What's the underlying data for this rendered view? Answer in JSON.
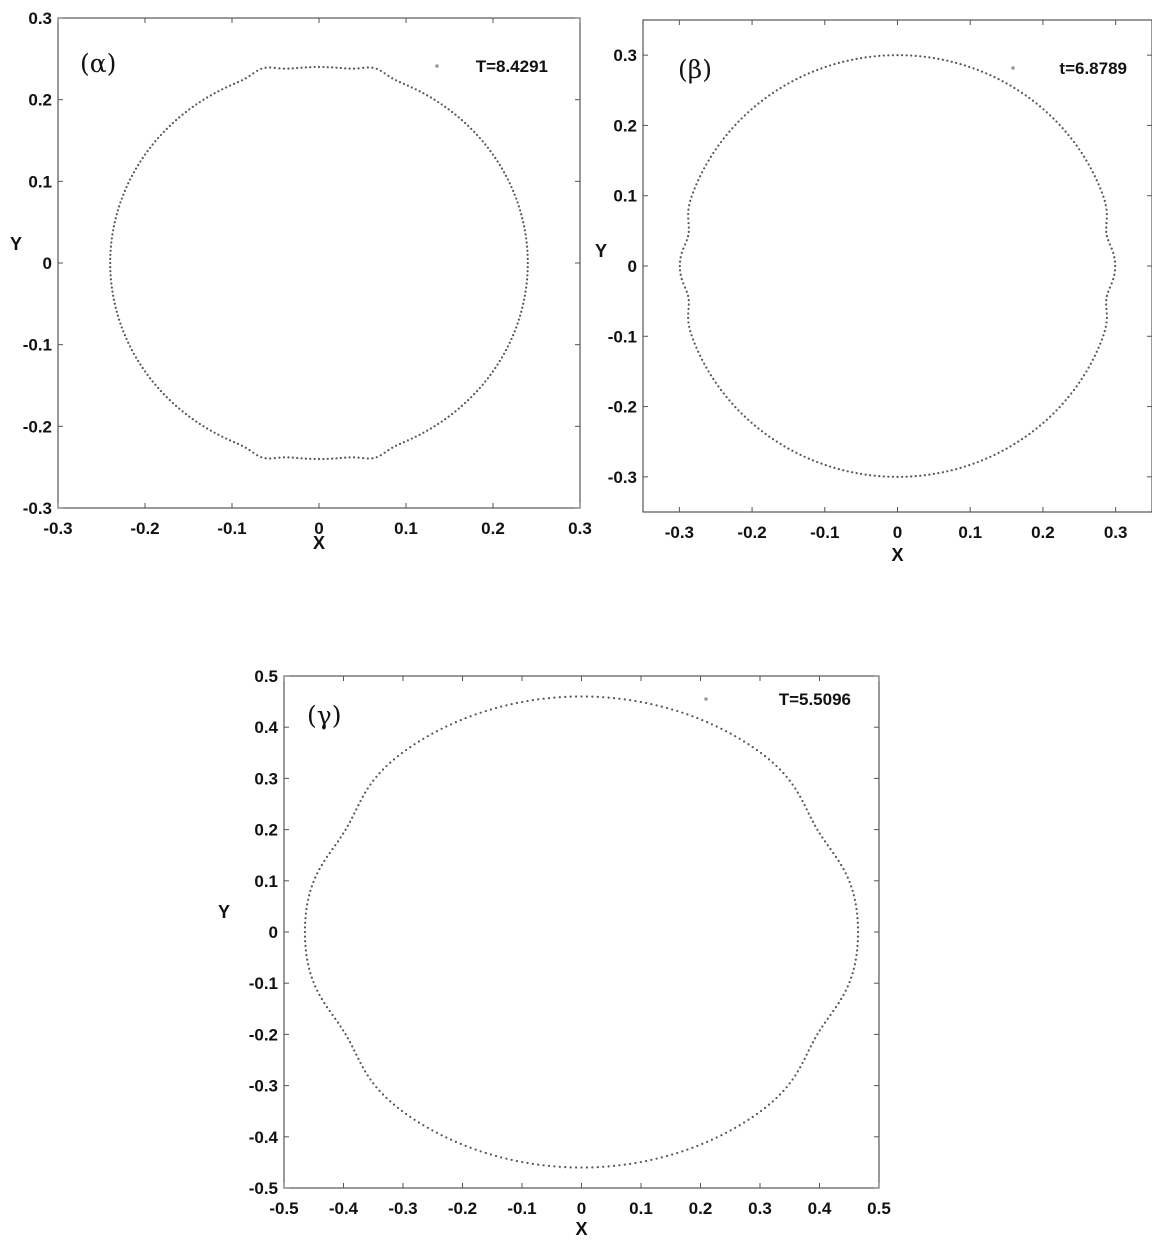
{
  "chart_data": [
    {
      "type": "scatter",
      "panel_label": "(α)",
      "time_label": "T=8.4291",
      "xlabel": "X",
      "ylabel": "Y",
      "xlim": [
        -0.3,
        0.3
      ],
      "ylim": [
        -0.3,
        0.3
      ],
      "xticks": [
        -0.3,
        -0.2,
        -0.1,
        0,
        0.1,
        0.2,
        0.3
      ],
      "yticks": [
        -0.3,
        -0.2,
        -0.1,
        0,
        0.1,
        0.2,
        0.3
      ],
      "xtick_labels": [
        "-0.3",
        "-0.2",
        "-0.1",
        "0",
        "0.1",
        "0.2",
        "0.3"
      ],
      "ytick_labels": [
        "-0.3",
        "-0.2",
        "-0.1",
        "0",
        "0.1",
        "0.2",
        "0.3"
      ],
      "grid": false,
      "shape": {
        "radius_x": 0.24,
        "radius_y": 0.24,
        "bumps": [
          {
            "angle_deg": 75,
            "amplitude": 0.007,
            "width_deg": 3
          },
          {
            "angle_deg": 105,
            "amplitude": 0.007,
            "width_deg": 3
          },
          {
            "angle_deg": 255,
            "amplitude": 0.007,
            "width_deg": 3
          },
          {
            "angle_deg": 285,
            "amplitude": 0.007,
            "width_deg": 3
          }
        ],
        "points": 300
      }
    },
    {
      "type": "scatter",
      "panel_label": "(β)",
      "time_label": "t=6.8789",
      "xlabel": "X",
      "ylabel": "Y",
      "xlim": [
        -0.35,
        0.35
      ],
      "ylim": [
        -0.35,
        0.35
      ],
      "xticks": [
        -0.3,
        -0.2,
        -0.1,
        0,
        0.1,
        0.2,
        0.3
      ],
      "yticks": [
        -0.3,
        -0.2,
        -0.1,
        0,
        0.1,
        0.2,
        0.3
      ],
      "xtick_labels": [
        "-0.3",
        "-0.2",
        "-0.1",
        "0",
        "0.1",
        "0.2",
        "0.3"
      ],
      "ytick_labels": [
        "-0.3",
        "-0.2",
        "-0.1",
        "0",
        "0.1",
        "0.2",
        "0.3"
      ],
      "grid": false,
      "shape": {
        "radius_x": 0.3,
        "radius_y": 0.3,
        "bumps": [
          {
            "angle_deg": 9,
            "amplitude": -0.009,
            "width_deg": 3.5
          },
          {
            "angle_deg": 351,
            "amplitude": -0.009,
            "width_deg": 3.5
          },
          {
            "angle_deg": 171,
            "amplitude": -0.009,
            "width_deg": 3.5
          },
          {
            "angle_deg": 189,
            "amplitude": -0.009,
            "width_deg": 3.5
          }
        ],
        "points": 300
      }
    },
    {
      "type": "scatter",
      "panel_label": "(γ)",
      "time_label": "T=5.5096",
      "xlabel": "X",
      "ylabel": "Y",
      "xlim": [
        -0.5,
        0.5
      ],
      "ylim": [
        -0.5,
        0.5
      ],
      "xticks": [
        -0.5,
        -0.4,
        -0.3,
        -0.2,
        -0.1,
        0,
        0.1,
        0.2,
        0.3,
        0.4,
        0.5
      ],
      "yticks": [
        -0.5,
        -0.4,
        -0.3,
        -0.2,
        -0.1,
        0,
        0.1,
        0.2,
        0.3,
        0.4,
        0.5
      ],
      "xtick_labels": [
        "-0.5",
        "-0.4",
        "-0.3",
        "-0.2",
        "-0.1",
        "0",
        "0.1",
        "0.2",
        "0.3",
        "0.4",
        "0.5"
      ],
      "ytick_labels": [
        "-0.5",
        "-0.4",
        "-0.3",
        "-0.2",
        "-0.1",
        "0",
        "0.1",
        "0.2",
        "0.3",
        "0.4",
        "0.5"
      ],
      "grid": false,
      "shape": {
        "radius_x": 0.465,
        "radius_y": 0.46,
        "bumps": [
          {
            "angle_deg": 27,
            "amplitude": -0.02,
            "width_deg": 8
          },
          {
            "angle_deg": 333,
            "amplitude": -0.02,
            "width_deg": 8
          },
          {
            "angle_deg": 153,
            "amplitude": -0.02,
            "width_deg": 8
          },
          {
            "angle_deg": 207,
            "amplitude": -0.02,
            "width_deg": 8
          }
        ],
        "points": 320
      }
    }
  ]
}
